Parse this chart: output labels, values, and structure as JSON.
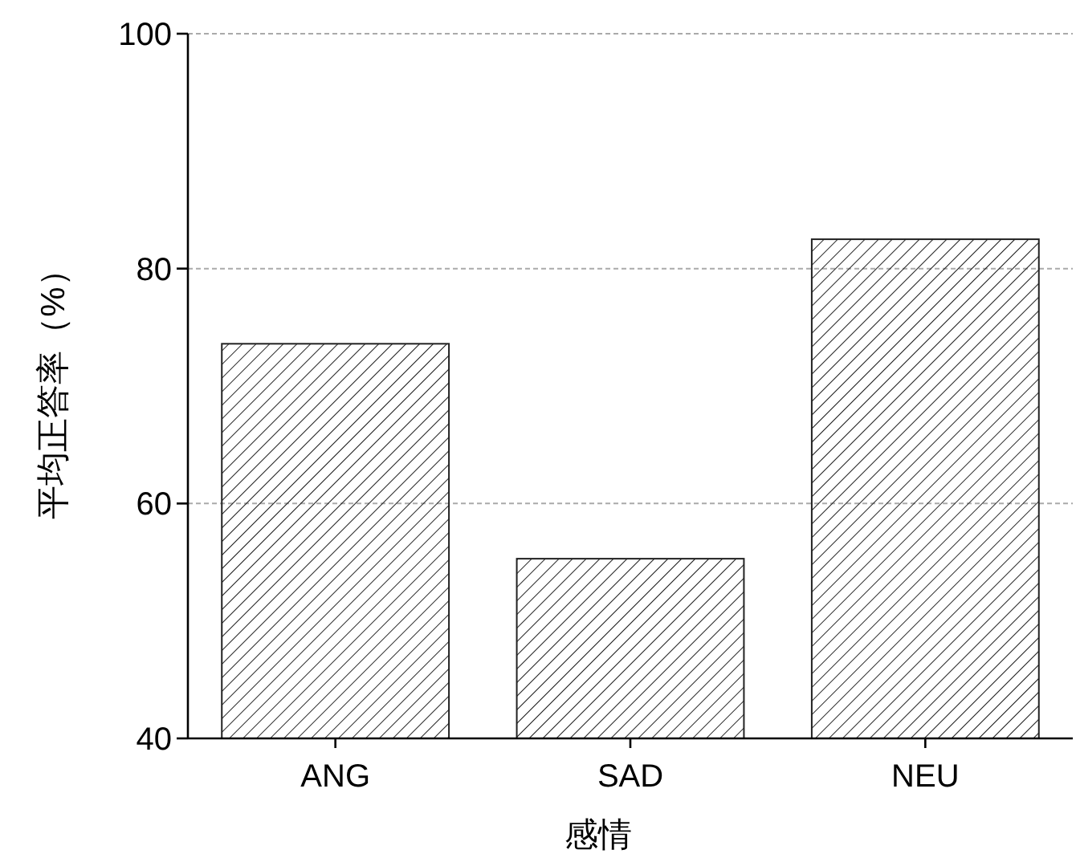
{
  "chart_data": {
    "type": "bar",
    "xlabel": "感情",
    "ylabel": "平均正答率（%）",
    "categories": [
      "ANG",
      "SAD",
      "NEU"
    ],
    "values": [
      73.6,
      55.3,
      82.5
    ],
    "color": "#222222",
    "ylim": [
      40,
      100
    ],
    "yticks": [
      40,
      60,
      80,
      100
    ],
    "grid": "y"
  }
}
